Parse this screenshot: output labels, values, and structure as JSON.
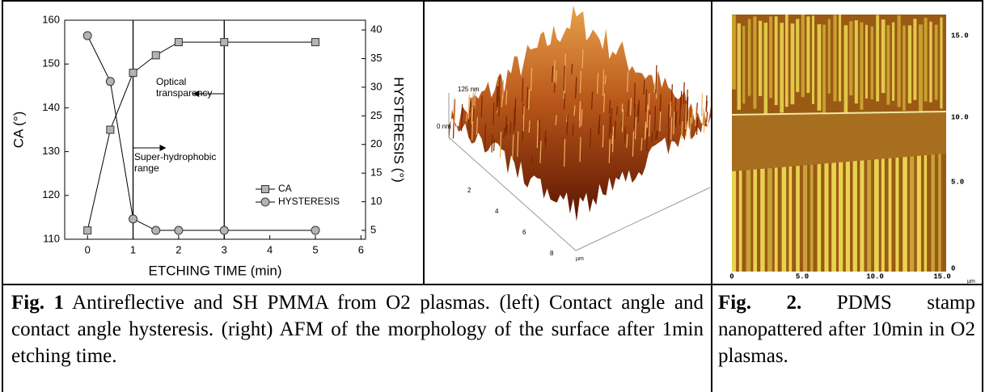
{
  "chart_data": {
    "type": "line",
    "x": [
      0,
      0.5,
      1,
      1.5,
      2,
      3,
      5
    ],
    "series": [
      {
        "name": "CA",
        "color": "#b4b4b4",
        "marker": "square",
        "values": [
          112,
          135,
          148,
          152,
          155,
          155,
          155
        ]
      },
      {
        "name": "HYSTERESIS",
        "color": "#b4b4b4",
        "marker": "circle",
        "axis": "y2",
        "values": [
          39,
          31,
          7,
          5,
          5,
          5,
          5
        ]
      }
    ],
    "xlim": [
      -0.5,
      6.1
    ],
    "xticks": [
      0,
      1,
      2,
      3,
      4,
      5,
      6
    ],
    "ylim": [
      110,
      160
    ],
    "yticks": [
      110,
      120,
      130,
      140,
      150,
      160
    ],
    "y2lim": [
      3.45,
      41.7
    ],
    "y2ticks": [
      5,
      10,
      15,
      20,
      25,
      30,
      35,
      40
    ],
    "xlabel": "ETCHING TIME (min)",
    "ylabel": "CA (°)",
    "y2label": "HYSTERESIS (°)",
    "vlines": [
      1,
      3
    ],
    "annotations": [
      [
        "Optical",
        "transparency"
      ],
      [
        "Super-hydrophobic",
        "range"
      ]
    ],
    "legend": "center-right"
  },
  "afm_image": {
    "z_labels": [
      "125 nm",
      "0 nm"
    ],
    "axis_ticks": [
      "2",
      "4",
      "6",
      "8"
    ],
    "unit": "µm"
  },
  "pdms_image": {
    "right_ticks": [
      "15.0",
      "10.0",
      "5.0",
      "0"
    ],
    "bottom_ticks": [
      "0",
      "5.0",
      "10.0",
      "15.0"
    ],
    "unit": "µm"
  },
  "captions": [
    {
      "label": "Fig. 1",
      "text": " Antireflective and SH PMMA from O2 plasmas. (left) Contact angle and contact angle hysteresis. (right) AFM of the morphology of the surface after 1min etching time."
    },
    {
      "label": "Fig. 2.",
      "text": " PDMS stamp nanopattered after 10min in O2 plasmas."
    }
  ]
}
